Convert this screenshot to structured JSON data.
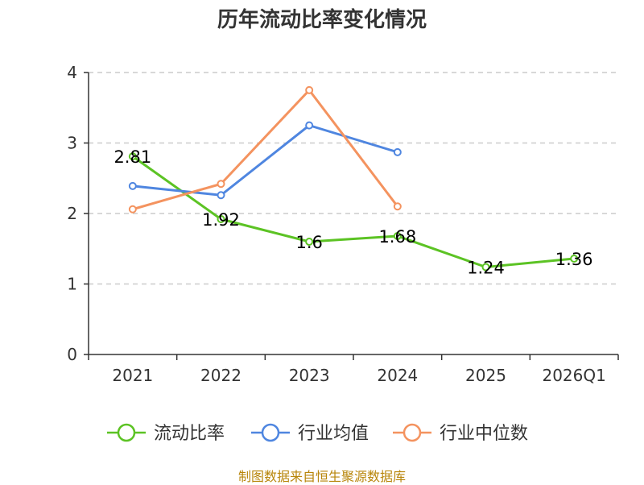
{
  "chart_data": {
    "type": "line",
    "title": "历年流动比率变化情况",
    "categories": [
      "2021",
      "2022",
      "2023",
      "2024",
      "2025",
      "2026Q1"
    ],
    "ylim": [
      0,
      4
    ],
    "yticks": [
      0,
      1,
      2,
      3,
      4
    ],
    "grid": true,
    "legend_position": "bottom",
    "series": [
      {
        "name": "流动比率",
        "color": "#5cc324",
        "values": [
          2.81,
          1.92,
          1.6,
          1.68,
          1.24,
          1.36
        ],
        "labels": [
          "2.81",
          "1.92",
          "1.6",
          "1.68",
          "1.24",
          "1.36"
        ]
      },
      {
        "name": "行业均值",
        "color": "#4f86e0",
        "values": [
          2.39,
          2.26,
          3.25,
          2.87,
          null,
          null
        ]
      },
      {
        "name": "行业中位数",
        "color": "#f4935f",
        "values": [
          2.06,
          2.42,
          3.75,
          2.1,
          null,
          null
        ]
      }
    ],
    "source": "制图数据来自恒生聚源数据库"
  }
}
